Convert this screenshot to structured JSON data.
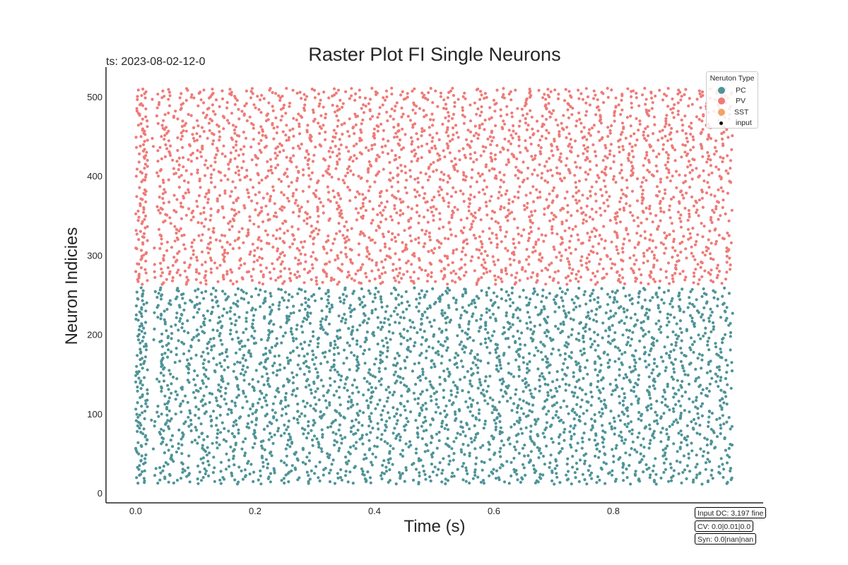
{
  "chart_data": {
    "type": "scatter",
    "title": "Raster Plot FI Single Neurons",
    "subtitle": "ts: 2023-08-02-12-0",
    "xlabel": "Time (s)",
    "ylabel": "Neuron Indicies",
    "xlim": [
      -0.05,
      1.05
    ],
    "ylim": [
      -12,
      535
    ],
    "xticks": [
      0.0,
      0.2,
      0.4,
      0.6,
      0.8
    ],
    "xtick_labels": [
      "0.0",
      "0.2",
      "0.4",
      "0.6",
      "0.8"
    ],
    "yticks": [
      0,
      100,
      200,
      300,
      400,
      500
    ],
    "ytick_labels": [
      "0",
      "100",
      "200",
      "300",
      "400",
      "500"
    ],
    "grid": false,
    "legend_placement": "top-right",
    "legend_title": "Neruton Type",
    "series": [
      {
        "name": "PC",
        "color": "#4f9497",
        "neuron_range": [
          12,
          258
        ],
        "time_range": [
          0.0,
          1.0
        ],
        "marker": "dot"
      },
      {
        "name": "PV",
        "color": "#ee7b78",
        "neuron_range": [
          264,
          510
        ],
        "time_range": [
          0.0,
          1.0
        ],
        "marker": "dot"
      },
      {
        "name": "SST",
        "color": "#f0a468",
        "neuron_range": [],
        "time_range": [],
        "marker": "dot"
      },
      {
        "name": "input",
        "color": "#000000",
        "neuron_range": [],
        "time_range": [],
        "marker": "small-dot"
      }
    ],
    "annotations": [
      "Input DC: 3,197 fine",
      "CV: 0.0|0.01|0.0",
      "Syn: 0.0|nan|nan"
    ]
  }
}
